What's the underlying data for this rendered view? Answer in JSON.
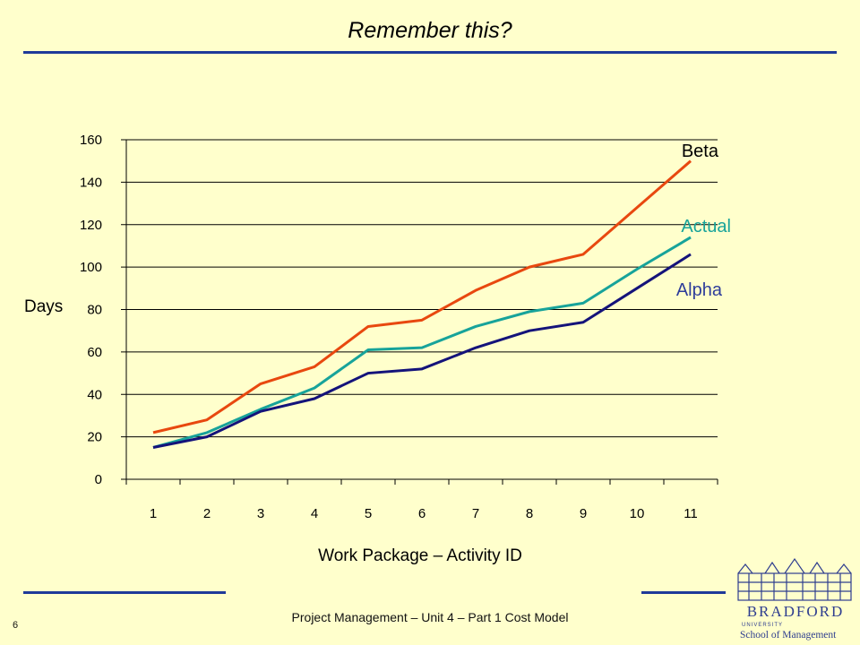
{
  "slide": {
    "title": "Remember this?",
    "footer": "Project Management – Unit 4 – Part 1 Cost Model",
    "page_number": "6"
  },
  "logo": {
    "line1": "BRADFORD",
    "line2": "UNIVERSITY",
    "line3": "School of Management",
    "color": "#2E3D8F"
  },
  "chart_data": {
    "type": "line",
    "title": "",
    "xlabel": "Work Package – Activity ID",
    "ylabel": "Days",
    "categories": [
      "1",
      "2",
      "3",
      "4",
      "5",
      "6",
      "7",
      "8",
      "9",
      "10",
      "11"
    ],
    "ylim": [
      0,
      160
    ],
    "yticks": [
      0,
      20,
      40,
      60,
      80,
      100,
      120,
      140,
      160
    ],
    "grid": true,
    "legend": "inline-right",
    "series": [
      {
        "name": "Beta",
        "color": "#E8480F",
        "values": [
          22,
          28,
          45,
          53,
          72,
          75,
          89,
          100,
          106,
          128,
          150
        ]
      },
      {
        "name": "Actual",
        "color": "#17A39A",
        "values": [
          15,
          22,
          33,
          43,
          61,
          62,
          72,
          79,
          83,
          99,
          114
        ]
      },
      {
        "name": "Alpha",
        "color": "#14137A",
        "values": [
          15,
          20,
          32,
          38,
          50,
          52,
          62,
          70,
          74,
          90,
          106
        ]
      }
    ]
  }
}
